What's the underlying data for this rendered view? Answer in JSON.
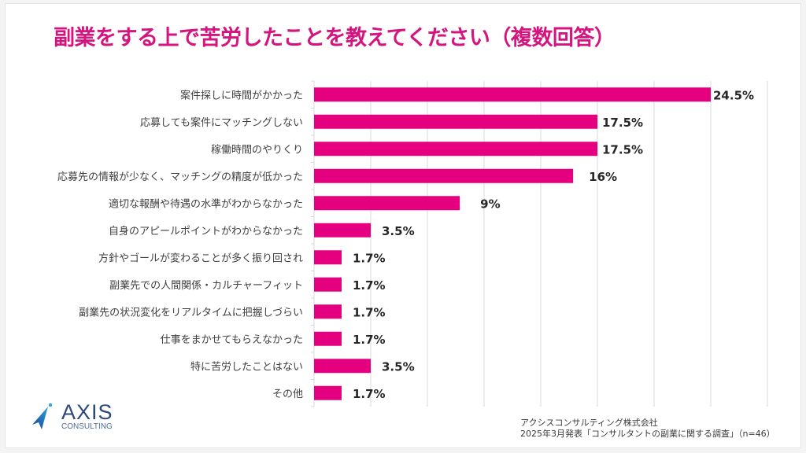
{
  "title": "副業をする上で苦労したことを教えてください（複数回答）",
  "colors": {
    "title": "#d4147f",
    "bar": "#e4007f",
    "grid": "#d9d9d9",
    "label": "#404040",
    "value": "#262626"
  },
  "logo": {
    "name": "AXIS",
    "sub": "CONSULTING",
    "icon": "rocket-arrow-icon"
  },
  "source": {
    "line1": "アクシスコンサルティング株式会社",
    "line2": "2025年3月発表「コンサルタントの副業に関する調査」（n=46）"
  },
  "chart_data": {
    "type": "bar",
    "orientation": "horizontal",
    "title": "副業をする上で苦労したことを教えてください（複数回答）",
    "xlabel": "",
    "ylabel": "",
    "xlim": [
      0,
      28
    ],
    "x_grid_step": 3.5,
    "grid": true,
    "tick_labels_visible": false,
    "categories": [
      "案件探しに時間がかかった",
      "応募しても案件にマッチングしない",
      "稼働時間のやりくり",
      "応募先の情報が少なく、マッチングの精度が低かった",
      "適切な報酬や待遇の水準がわからなかった",
      "自身のアピールポイントがわからなかった",
      "方針やゴールが変わることが多く振り回され",
      "副業先での人間関係・カルチャーフィット",
      "副業先の状況変化をリアルタイムに把握しづらい",
      "仕事をまかせてもらえなかった",
      "特に苦労したことはない",
      "その他"
    ],
    "values": [
      24.5,
      17.5,
      17.5,
      16,
      9,
      3.5,
      1.7,
      1.7,
      1.7,
      1.7,
      3.5,
      1.7
    ],
    "data_labels": [
      "24.5%",
      "17.5%",
      "17.5%",
      "16%",
      "9%",
      "3.5%",
      "1.7%",
      "1.7%",
      "1.7%",
      "1.7%",
      "3.5%",
      "1.7%"
    ],
    "legend": "none"
  }
}
